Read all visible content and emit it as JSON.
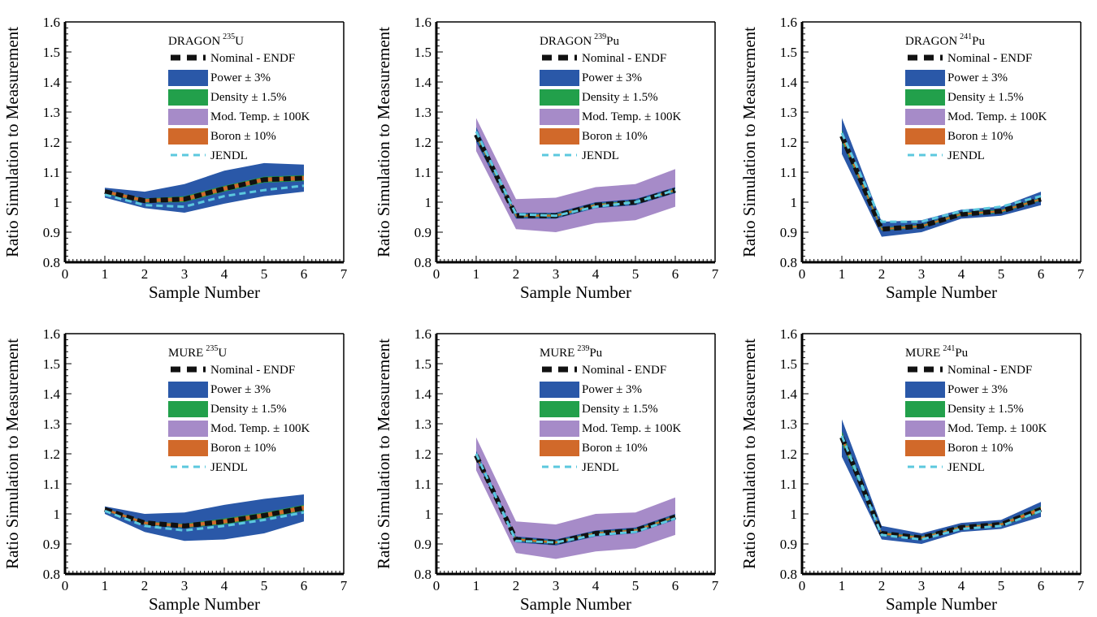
{
  "figure": {
    "colors": {
      "nominal": "#111111",
      "power": "#2a58a8",
      "density": "#22a04b",
      "mod_temp": "#a68bc8",
      "boron": "#d1692a",
      "jendl": "#5cc8de",
      "axis": "#000000"
    }
  },
  "chart_data": [
    {
      "type": "line",
      "title_prefix": "DRAGON",
      "title_isotope_mass": "235",
      "title_isotope_symbol": "U",
      "xlabel": "Sample Number",
      "ylabel": "Ratio Simulation to Measurement",
      "xlim": [
        0,
        7
      ],
      "ylim": [
        0.8,
        1.6
      ],
      "x_ticks": [
        "0",
        "1",
        "2",
        "3",
        "4",
        "5",
        "6",
        "7"
      ],
      "y_ticks": [
        "0.8",
        "0.9",
        "1",
        "1.1",
        "1.2",
        "1.3",
        "1.4",
        "1.5",
        "1.6"
      ],
      "legend_position": "top-center",
      "x": [
        1,
        2,
        3,
        4,
        5,
        6
      ],
      "series": [
        {
          "name": "Nominal - ENDF",
          "style": "dashed-line",
          "color_key": "nominal",
          "values": [
            1.035,
            1.005,
            1.01,
            1.045,
            1.075,
            1.08
          ]
        },
        {
          "name": "Power ± 3%",
          "style": "band",
          "color_key": "power",
          "lower": [
            1.015,
            0.98,
            0.965,
            0.995,
            1.02,
            1.035
          ],
          "upper": [
            1.048,
            1.035,
            1.06,
            1.105,
            1.13,
            1.125
          ]
        },
        {
          "name": "Density ± 1.5%",
          "style": "band",
          "color_key": "density",
          "lower": [
            1.028,
            0.998,
            1.0,
            1.035,
            1.065,
            1.07
          ],
          "upper": [
            1.04,
            1.012,
            1.02,
            1.055,
            1.085,
            1.09
          ]
        },
        {
          "name": "Mod. Temp. ± 100K",
          "style": "band",
          "color_key": "mod_temp",
          "lower": [
            1.025,
            0.995,
            0.995,
            1.03,
            1.06,
            1.065
          ],
          "upper": [
            1.043,
            1.017,
            1.025,
            1.06,
            1.09,
            1.095
          ]
        },
        {
          "name": "Boron ± 10%",
          "style": "band",
          "color_key": "boron",
          "lower": [
            1.03,
            1.0,
            1.003,
            1.038,
            1.068,
            1.073
          ],
          "upper": [
            1.04,
            1.01,
            1.017,
            1.052,
            1.082,
            1.087
          ]
        },
        {
          "name": "JENDL",
          "style": "dashed-line",
          "color_key": "jendl",
          "values": [
            1.025,
            0.99,
            0.985,
            1.02,
            1.04,
            1.055
          ]
        }
      ]
    },
    {
      "type": "line",
      "title_prefix": "DRAGON",
      "title_isotope_mass": "239",
      "title_isotope_symbol": "Pu",
      "xlabel": "Sample Number",
      "ylabel": "Ratio Simulation to Measurement",
      "xlim": [
        0,
        7
      ],
      "ylim": [
        0.8,
        1.6
      ],
      "x_ticks": [
        "0",
        "1",
        "2",
        "3",
        "4",
        "5",
        "6",
        "7"
      ],
      "y_ticks": [
        "0.8",
        "0.9",
        "1",
        "1.1",
        "1.2",
        "1.3",
        "1.4",
        "1.5",
        "1.6"
      ],
      "legend_position": "top-center",
      "x": [
        1,
        2,
        3,
        4,
        5,
        6
      ],
      "series": [
        {
          "name": "Nominal - ENDF",
          "style": "dashed-line",
          "color_key": "nominal",
          "values": [
            1.225,
            0.955,
            0.955,
            0.99,
            1.0,
            1.04
          ]
        },
        {
          "name": "Power ± 3%",
          "style": "band",
          "color_key": "power",
          "lower": [
            1.2,
            0.945,
            0.945,
            0.98,
            0.99,
            1.03
          ],
          "upper": [
            1.25,
            0.965,
            0.965,
            1.0,
            1.01,
            1.05
          ]
        },
        {
          "name": "Density ± 1.5%",
          "style": "band",
          "color_key": "density",
          "lower": [
            1.215,
            0.95,
            0.95,
            0.985,
            0.995,
            1.035
          ],
          "upper": [
            1.235,
            0.96,
            0.96,
            0.995,
            1.005,
            1.045
          ]
        },
        {
          "name": "Mod. Temp. ± 100K",
          "style": "band",
          "color_key": "mod_temp",
          "lower": [
            1.17,
            0.91,
            0.9,
            0.93,
            0.94,
            0.985
          ],
          "upper": [
            1.28,
            1.01,
            1.015,
            1.05,
            1.06,
            1.11
          ]
        },
        {
          "name": "Boron ± 10%",
          "style": "band",
          "color_key": "boron",
          "lower": [
            1.22,
            0.952,
            0.952,
            0.987,
            0.997,
            1.037
          ],
          "upper": [
            1.23,
            0.958,
            0.958,
            0.993,
            1.003,
            1.043
          ]
        },
        {
          "name": "JENDL",
          "style": "dashed-line",
          "color_key": "jendl",
          "values": [
            1.235,
            0.96,
            0.955,
            0.985,
            1.0,
            1.04
          ]
        }
      ]
    },
    {
      "type": "line",
      "title_prefix": "DRAGON",
      "title_isotope_mass": "241",
      "title_isotope_symbol": "Pu",
      "xlabel": "Sample Number",
      "ylabel": "Ratio Simulation to Measurement",
      "xlim": [
        0,
        7
      ],
      "ylim": [
        0.8,
        1.6
      ],
      "x_ticks": [
        "0",
        "1",
        "2",
        "3",
        "4",
        "5",
        "6",
        "7"
      ],
      "y_ticks": [
        "0.8",
        "0.9",
        "1",
        "1.1",
        "1.2",
        "1.3",
        "1.4",
        "1.5",
        "1.6"
      ],
      "legend_position": "top-right",
      "x": [
        1,
        2,
        3,
        4,
        5,
        6
      ],
      "series": [
        {
          "name": "Nominal - ENDF",
          "style": "dashed-line",
          "color_key": "nominal",
          "values": [
            1.22,
            0.91,
            0.92,
            0.96,
            0.97,
            1.01
          ]
        },
        {
          "name": "Power ± 3%",
          "style": "band",
          "color_key": "power",
          "lower": [
            1.16,
            0.885,
            0.9,
            0.945,
            0.955,
            0.99
          ],
          "upper": [
            1.28,
            0.935,
            0.94,
            0.975,
            0.985,
            1.035
          ]
        },
        {
          "name": "Density ± 1.5%",
          "style": "band",
          "color_key": "density",
          "lower": [
            1.2,
            0.905,
            0.915,
            0.955,
            0.965,
            1.005
          ],
          "upper": [
            1.24,
            0.915,
            0.925,
            0.965,
            0.975,
            1.015
          ]
        },
        {
          "name": "Mod. Temp. ± 100K",
          "style": "band",
          "color_key": "mod_temp",
          "lower": [
            1.19,
            0.9,
            0.912,
            0.952,
            0.962,
            1.002
          ],
          "upper": [
            1.25,
            0.92,
            0.928,
            0.968,
            0.978,
            1.018
          ]
        },
        {
          "name": "Boron ± 10%",
          "style": "band",
          "color_key": "boron",
          "lower": [
            1.21,
            0.907,
            0.917,
            0.957,
            0.967,
            1.007
          ],
          "upper": [
            1.23,
            0.913,
            0.923,
            0.963,
            0.973,
            1.013
          ]
        },
        {
          "name": "JENDL",
          "style": "dashed-line",
          "color_key": "jendl",
          "values": [
            1.23,
            0.935,
            0.935,
            0.97,
            0.985,
            1.02
          ]
        }
      ]
    },
    {
      "type": "line",
      "title_prefix": "MURE",
      "title_isotope_mass": "235",
      "title_isotope_symbol": "U",
      "xlabel": "Sample Number",
      "ylabel": "Ratio Simulation to Measurement",
      "xlim": [
        0,
        7
      ],
      "ylim": [
        0.8,
        1.6
      ],
      "x_ticks": [
        "0",
        "1",
        "2",
        "3",
        "4",
        "5",
        "6",
        "7"
      ],
      "y_ticks": [
        "0.8",
        "0.9",
        "1",
        "1.1",
        "1.2",
        "1.3",
        "1.4",
        "1.5",
        "1.6"
      ],
      "legend_position": "top-center",
      "x": [
        1,
        2,
        3,
        4,
        5,
        6
      ],
      "series": [
        {
          "name": "Nominal - ENDF",
          "style": "dashed-line",
          "color_key": "nominal",
          "values": [
            1.015,
            0.97,
            0.96,
            0.975,
            0.995,
            1.02
          ]
        },
        {
          "name": "Power ± 3%",
          "style": "band",
          "color_key": "power",
          "lower": [
            1.0,
            0.94,
            0.91,
            0.915,
            0.935,
            0.975
          ],
          "upper": [
            1.025,
            1.0,
            1.005,
            1.03,
            1.05,
            1.065
          ]
        },
        {
          "name": "Density ± 1.5%",
          "style": "band",
          "color_key": "density",
          "lower": [
            1.01,
            0.965,
            0.953,
            0.965,
            0.985,
            1.01
          ],
          "upper": [
            1.02,
            0.975,
            0.967,
            0.985,
            1.005,
            1.03
          ]
        },
        {
          "name": "Mod. Temp. ± 100K",
          "style": "band",
          "color_key": "mod_temp",
          "lower": [
            1.005,
            0.96,
            0.945,
            0.958,
            0.978,
            1.005
          ],
          "upper": [
            1.023,
            0.98,
            0.972,
            0.99,
            1.01,
            1.033
          ]
        },
        {
          "name": "Boron ± 10%",
          "style": "band",
          "color_key": "boron",
          "lower": [
            1.011,
            0.966,
            0.955,
            0.968,
            0.988,
            1.013
          ],
          "upper": [
            1.019,
            0.974,
            0.965,
            0.982,
            1.002,
            1.027
          ]
        },
        {
          "name": "JENDL",
          "style": "dashed-line",
          "color_key": "jendl",
          "values": [
            1.01,
            0.96,
            0.945,
            0.96,
            0.98,
            1.005
          ]
        }
      ]
    },
    {
      "type": "line",
      "title_prefix": "MURE",
      "title_isotope_mass": "239",
      "title_isotope_symbol": "Pu",
      "xlabel": "Sample Number",
      "ylabel": "Ratio Simulation to Measurement",
      "xlim": [
        0,
        7
      ],
      "ylim": [
        0.8,
        1.6
      ],
      "x_ticks": [
        "0",
        "1",
        "2",
        "3",
        "4",
        "5",
        "6",
        "7"
      ],
      "y_ticks": [
        "0.8",
        "0.9",
        "1",
        "1.1",
        "1.2",
        "1.3",
        "1.4",
        "1.5",
        "1.6"
      ],
      "legend_position": "top-center",
      "x": [
        1,
        2,
        3,
        4,
        5,
        6
      ],
      "series": [
        {
          "name": "Nominal - ENDF",
          "style": "dashed-line",
          "color_key": "nominal",
          "values": [
            1.195,
            0.915,
            0.905,
            0.935,
            0.945,
            0.99
          ]
        },
        {
          "name": "Power ± 3%",
          "style": "band",
          "color_key": "power",
          "lower": [
            1.18,
            0.905,
            0.895,
            0.925,
            0.935,
            0.98
          ],
          "upper": [
            1.21,
            0.925,
            0.915,
            0.945,
            0.955,
            1.0
          ]
        },
        {
          "name": "Density ± 1.5%",
          "style": "band",
          "color_key": "density",
          "lower": [
            1.188,
            0.91,
            0.9,
            0.93,
            0.94,
            0.985
          ],
          "upper": [
            1.202,
            0.92,
            0.91,
            0.94,
            0.95,
            0.995
          ]
        },
        {
          "name": "Mod. Temp. ± 100K",
          "style": "band",
          "color_key": "mod_temp",
          "lower": [
            1.145,
            0.87,
            0.85,
            0.875,
            0.885,
            0.93
          ],
          "upper": [
            1.255,
            0.975,
            0.965,
            1.0,
            1.005,
            1.055
          ]
        },
        {
          "name": "Boron ± 10%",
          "style": "band",
          "color_key": "boron",
          "lower": [
            1.19,
            0.912,
            0.902,
            0.932,
            0.942,
            0.987
          ],
          "upper": [
            1.2,
            0.918,
            0.908,
            0.938,
            0.948,
            0.993
          ]
        },
        {
          "name": "JENDL",
          "style": "dashed-line",
          "color_key": "jendl",
          "values": [
            1.2,
            0.91,
            0.905,
            0.93,
            0.94,
            0.985
          ]
        }
      ]
    },
    {
      "type": "line",
      "title_prefix": "MURE",
      "title_isotope_mass": "241",
      "title_isotope_symbol": "Pu",
      "xlabel": "Sample Number",
      "ylabel": "Ratio Simulation to Measurement",
      "xlim": [
        0,
        7
      ],
      "ylim": [
        0.8,
        1.6
      ],
      "x_ticks": [
        "0",
        "1",
        "2",
        "3",
        "4",
        "5",
        "6",
        "7"
      ],
      "y_ticks": [
        "0.8",
        "0.9",
        "1",
        "1.1",
        "1.2",
        "1.3",
        "1.4",
        "1.5",
        "1.6"
      ],
      "legend_position": "top-right",
      "x": [
        1,
        2,
        3,
        4,
        5,
        6
      ],
      "series": [
        {
          "name": "Nominal - ENDF",
          "style": "dashed-line",
          "color_key": "nominal",
          "values": [
            1.255,
            0.935,
            0.92,
            0.955,
            0.965,
            1.015
          ]
        },
        {
          "name": "Power ± 3%",
          "style": "band",
          "color_key": "power",
          "lower": [
            1.19,
            0.915,
            0.9,
            0.94,
            0.95,
            0.99
          ],
          "upper": [
            1.315,
            0.96,
            0.935,
            0.97,
            0.98,
            1.04
          ]
        },
        {
          "name": "Density ± 1.5%",
          "style": "band",
          "color_key": "density",
          "lower": [
            1.235,
            0.93,
            0.915,
            0.95,
            0.96,
            1.005
          ],
          "upper": [
            1.275,
            0.94,
            0.925,
            0.96,
            0.97,
            1.025
          ]
        },
        {
          "name": "Mod. Temp. ± 100K",
          "style": "band",
          "color_key": "mod_temp",
          "lower": [
            1.225,
            0.925,
            0.912,
            0.947,
            0.957,
            1.0
          ],
          "upper": [
            1.285,
            0.945,
            0.928,
            0.963,
            0.973,
            1.03
          ]
        },
        {
          "name": "Boron ± 10%",
          "style": "band",
          "color_key": "boron",
          "lower": [
            1.245,
            0.932,
            0.917,
            0.952,
            0.962,
            1.008
          ],
          "upper": [
            1.265,
            0.938,
            0.923,
            0.958,
            0.968,
            1.022
          ]
        },
        {
          "name": "JENDL",
          "style": "dashed-line",
          "color_key": "jendl",
          "values": [
            1.26,
            0.93,
            0.915,
            0.95,
            0.96,
            1.01
          ]
        }
      ]
    }
  ]
}
